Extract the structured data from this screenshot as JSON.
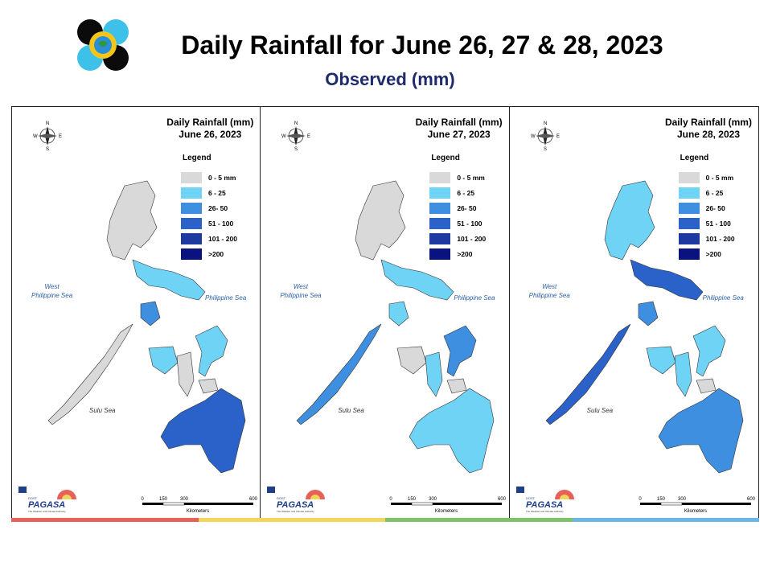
{
  "header": {
    "title": "Daily Rainfall for June 26, 27 & 28, 2023",
    "subtitle": "Observed (mm)"
  },
  "legend": {
    "title": "Legend",
    "items": [
      {
        "label": "0 - 5 mm",
        "color": "#d9d9d9"
      },
      {
        "label": "6 - 25",
        "color": "#6fd3f5"
      },
      {
        "label": "26- 50",
        "color": "#3f8fe0"
      },
      {
        "label": "51 - 100",
        "color": "#2a62c9"
      },
      {
        "label": "101 - 200",
        "color": "#1d3aa0"
      },
      {
        "label": ">200",
        "color": "#0a1280"
      }
    ]
  },
  "panels": [
    {
      "heading": "Daily Rainfall (mm)",
      "date": "June 26, 2023"
    },
    {
      "heading": "Daily Rainfall (mm)",
      "date": "June 27, 2023"
    },
    {
      "heading": "Daily Rainfall (mm)",
      "date": "June 28, 2023"
    }
  ],
  "seas": {
    "west": "West\nPhilippine Sea",
    "east": "Philippine Sea",
    "sulu": "Sulu Sea"
  },
  "compass": {
    "n": "N",
    "s": "S",
    "e": "E",
    "w": "W"
  },
  "scale": {
    "ticks": [
      "0",
      "150",
      "300",
      "600"
    ],
    "unit": "Kilometers"
  },
  "branding": {
    "name": "PAGASA",
    "tagline": "The Weather and Climate Authority",
    "dost": "DOST"
  },
  "colors": {
    "stripe": [
      "#e8605a",
      "#f2d55a",
      "#7fc26e",
      "#6cb7e3"
    ]
  }
}
